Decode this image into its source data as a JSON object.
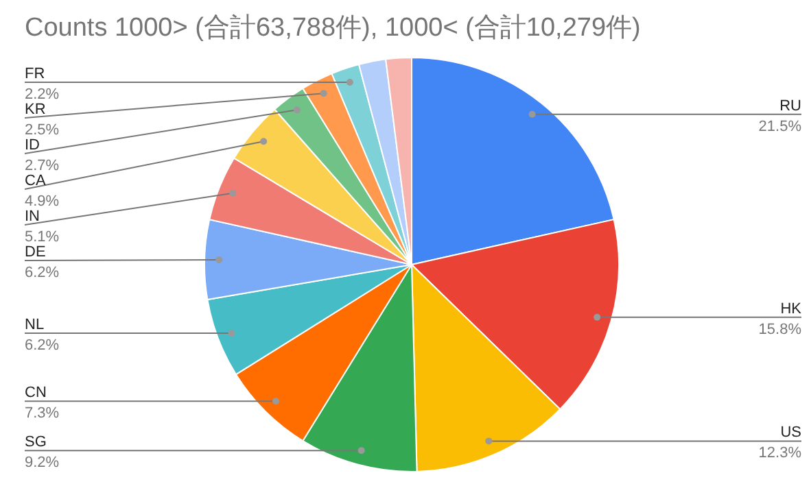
{
  "chart_data": {
    "type": "pie",
    "title": "Counts 1000> (合計63,788件), 1000< (合計10,279件)",
    "categories": [
      "RU",
      "HK",
      "US",
      "SG",
      "CN",
      "NL",
      "DE",
      "IN",
      "CA",
      "ID",
      "KR",
      "FR",
      null,
      null
    ],
    "values": [
      21.5,
      15.8,
      12.3,
      9.2,
      7.3,
      6.2,
      6.2,
      5.1,
      4.9,
      2.7,
      2.5,
      2.2,
      2.1,
      2.0
    ],
    "value_labels": [
      "21.5%",
      "15.8%",
      "12.3%",
      "9.2%",
      "7.3%",
      "6.2%",
      "6.2%",
      "5.1%",
      "4.9%",
      "2.7%",
      "2.5%",
      "2.2%",
      null,
      null
    ],
    "colors": [
      "#4285f4",
      "#ea4335",
      "#fbbc04",
      "#34a853",
      "#ff6d01",
      "#46bdc6",
      "#7baaf7",
      "#f07b72",
      "#fcd04f",
      "#71c287",
      "#ff994d",
      "#7ed1d7",
      "#b3cefb",
      "#f7b4ae"
    ]
  }
}
